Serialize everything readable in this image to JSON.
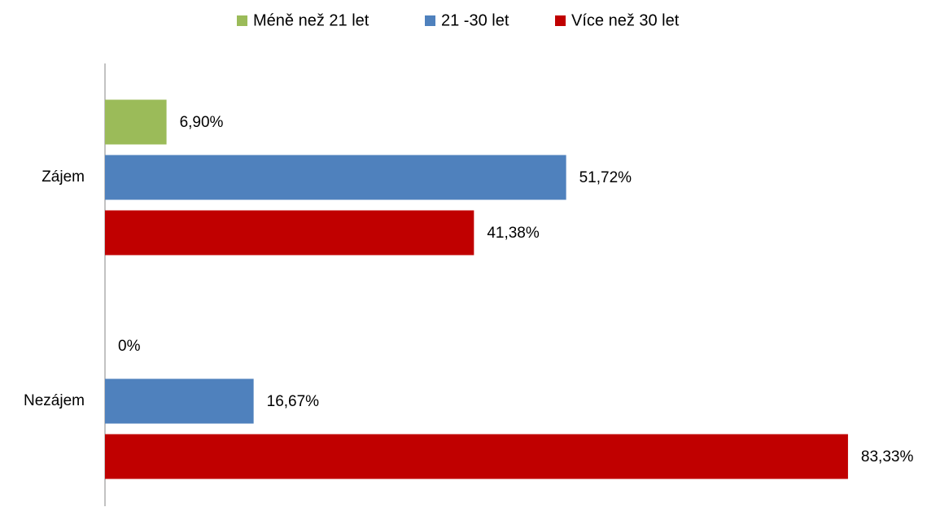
{
  "chart_data": {
    "type": "bar",
    "orientation": "horizontal",
    "categories": [
      "Zájem",
      "Nezájem"
    ],
    "series": [
      {
        "name": "Méně než 21 let",
        "color": "#9bbb59",
        "values": [
          6.9,
          0
        ],
        "value_labels": [
          "6,90%",
          "0%"
        ]
      },
      {
        "name": "21 -30 let",
        "color": "#4f81bd",
        "values": [
          51.72,
          16.67
        ],
        "value_labels": [
          "51,72%",
          "16,67%"
        ]
      },
      {
        "name": "Více než 30 let",
        "color": "#c00000",
        "values": [
          41.38,
          83.33
        ],
        "value_labels": [
          "41,38%",
          "83,33%"
        ]
      }
    ],
    "xlim": [
      0,
      90
    ],
    "legend": "top"
  }
}
